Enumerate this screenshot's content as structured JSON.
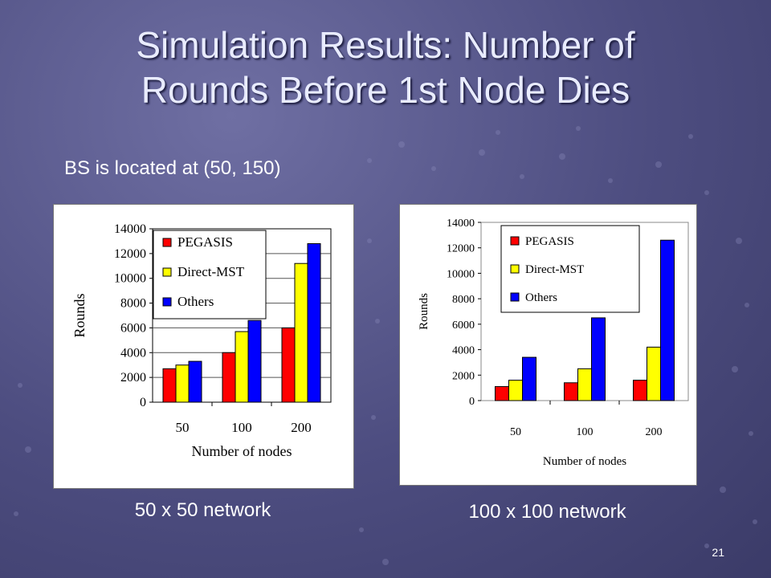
{
  "slide": {
    "title_line1": "Simulation Results: Number of",
    "title_line2": "Rounds Before 1st Node Dies",
    "subtitle": "BS is located at (50, 150)",
    "page_number": "21"
  },
  "colors": {
    "pegasis": "#ff0000",
    "direct_mst": "#ffff00",
    "others": "#0000ff",
    "background": "#4d4d80"
  },
  "chart_data": [
    {
      "type": "bar",
      "caption": "50 x 50 network",
      "xlabel": "Number of nodes",
      "ylabel": "Rounds",
      "categories": [
        "50",
        "100",
        "200"
      ],
      "yticks": [
        "0",
        "2000",
        "4000",
        "6000",
        "8000",
        "10000",
        "12000",
        "14000"
      ],
      "ylim": [
        0,
        14000
      ],
      "legend_position": "top-left",
      "series": [
        {
          "name": "PEGASIS",
          "values": [
            2700,
            4000,
            6000
          ]
        },
        {
          "name": "Direct-MST",
          "values": [
            3000,
            5700,
            11200
          ]
        },
        {
          "name": "Others",
          "values": [
            3300,
            6600,
            12800
          ]
        }
      ]
    },
    {
      "type": "bar",
      "caption": "100 x 100 network",
      "xlabel": "Number of nodes",
      "ylabel": "Rounds",
      "categories": [
        "50",
        "100",
        "200"
      ],
      "yticks": [
        "0",
        "2000",
        "4000",
        "6000",
        "8000",
        "10000",
        "12000",
        "14000"
      ],
      "ylim": [
        0,
        14000
      ],
      "legend_position": "top-left",
      "series": [
        {
          "name": "PEGASIS",
          "values": [
            1100,
            1400,
            1600
          ]
        },
        {
          "name": "Direct-MST",
          "values": [
            1600,
            2500,
            4200
          ]
        },
        {
          "name": "Others",
          "values": [
            3400,
            6500,
            12600
          ]
        }
      ]
    }
  ]
}
